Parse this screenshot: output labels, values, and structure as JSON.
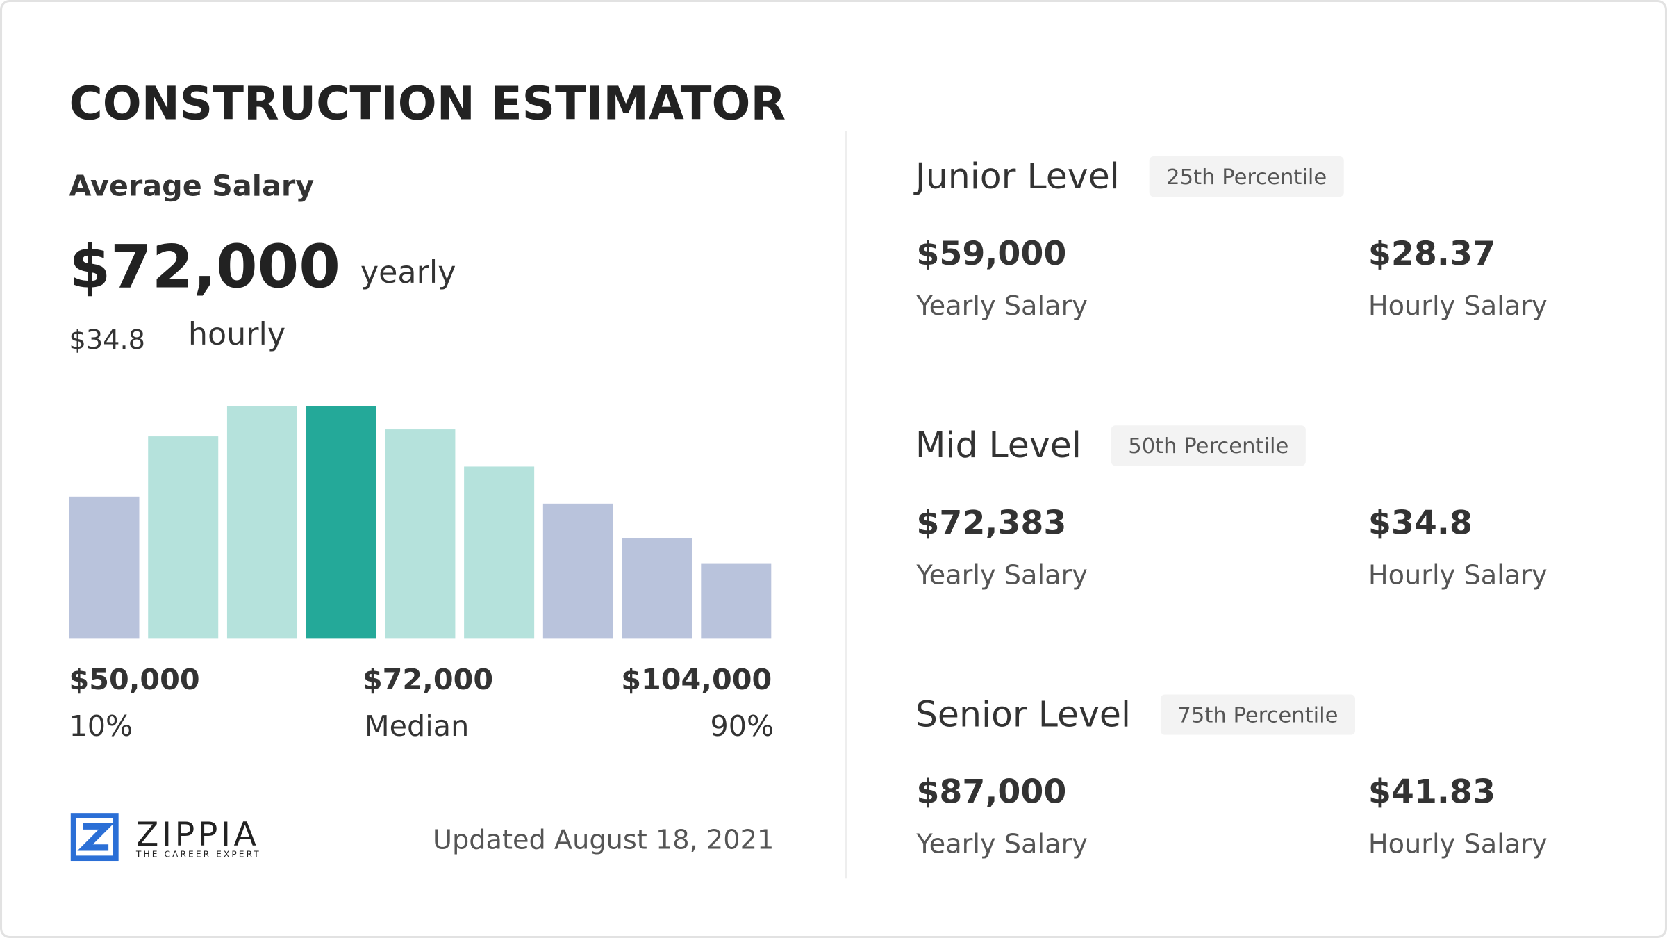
{
  "title": "CONSTRUCTION ESTIMATOR",
  "average": {
    "label": "Average Salary",
    "yearly": "$72,000",
    "yearly_unit": "yearly",
    "hourly": "$34.8",
    "hourly_unit": "hourly"
  },
  "chart_data": {
    "type": "bar",
    "values": [
      61,
      87,
      100,
      100,
      90,
      74,
      58,
      43,
      32
    ],
    "colors": [
      "#b9c3dc",
      "#b5e2dc",
      "#b5e2dc",
      "#24a999",
      "#b5e2dc",
      "#b5e2dc",
      "#b9c3dc",
      "#b9c3dc",
      "#b9c3dc"
    ],
    "ylim": [
      0,
      100
    ]
  },
  "chart_labels": [
    {
      "amount": "$50,000",
      "label": "10%"
    },
    {
      "amount": "$72,000",
      "label": "Median"
    },
    {
      "amount": "$104,000",
      "label": "90%"
    }
  ],
  "logo": {
    "name": "ZIPPIA",
    "tagline": "THE CAREER EXPERT"
  },
  "updated": "Updated August 18, 2021",
  "levels": [
    {
      "name": "Junior Level",
      "percentile": "25th Percentile",
      "yearly": "$59,000",
      "yearly_label": "Yearly Salary",
      "hourly": "$28.37",
      "hourly_label": "Hourly Salary"
    },
    {
      "name": "Mid Level",
      "percentile": "50th Percentile",
      "yearly": "$72,383",
      "yearly_label": "Yearly Salary",
      "hourly": "$34.8",
      "hourly_label": "Hourly Salary"
    },
    {
      "name": "Senior Level",
      "percentile": "75th Percentile",
      "yearly": "$87,000",
      "yearly_label": "Yearly Salary",
      "hourly": "$41.83",
      "hourly_label": "Hourly Salary"
    }
  ]
}
